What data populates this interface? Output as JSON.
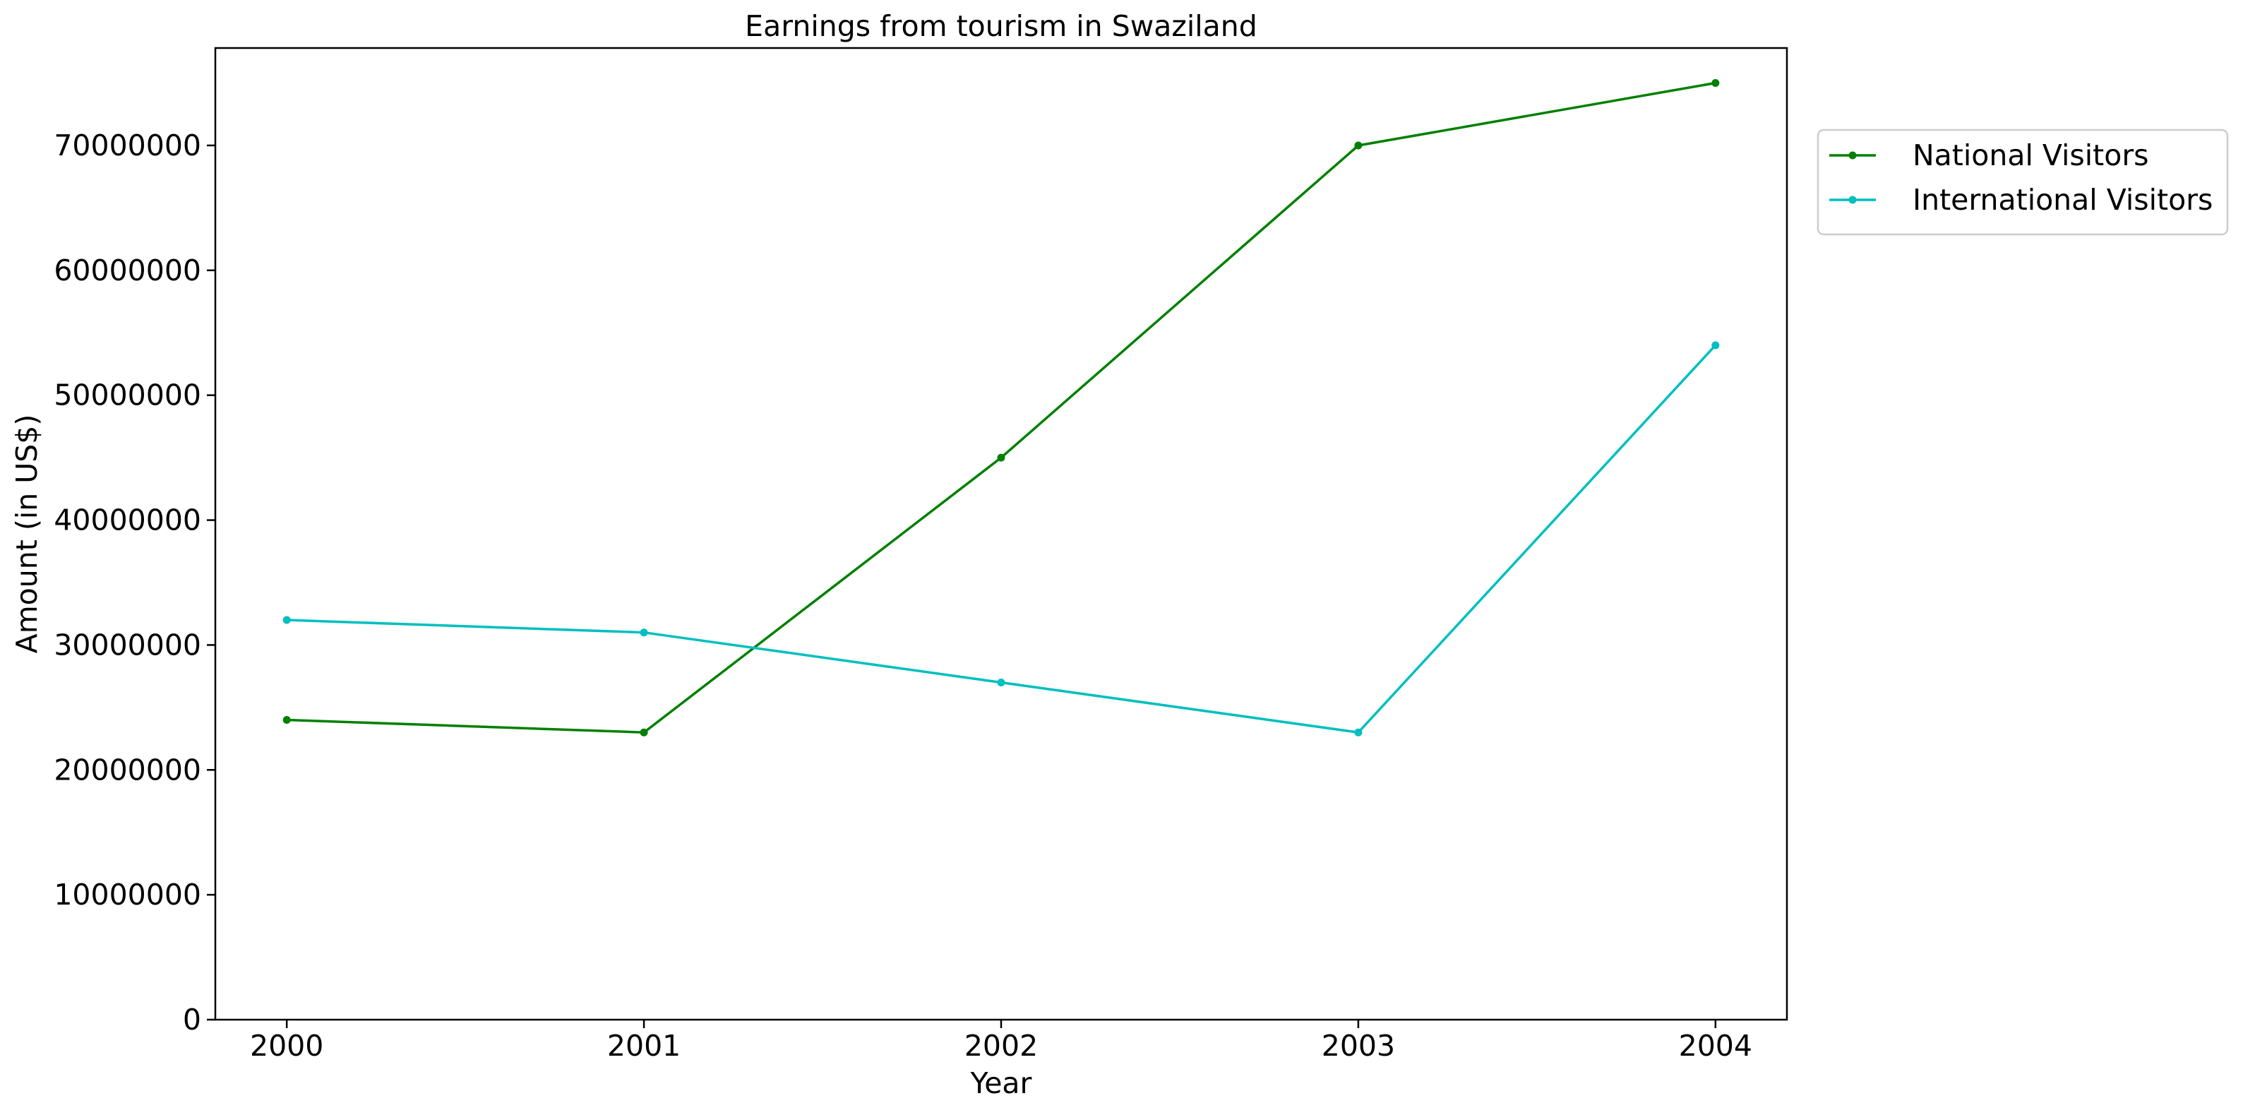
{
  "chart_data": {
    "type": "line",
    "title": "Earnings from tourism in Swaziland",
    "xlabel": "Year",
    "ylabel": "Amount (in US$)",
    "x": [
      "2000",
      "2001",
      "2002",
      "2003",
      "2004"
    ],
    "xlim": [
      -0.2,
      4.2
    ],
    "ylim": [
      0,
      77800000
    ],
    "yticks": [
      0,
      10000000,
      20000000,
      30000000,
      40000000,
      50000000,
      60000000,
      70000000
    ],
    "ytick_labels": [
      "0",
      "10000000",
      "20000000",
      "30000000",
      "40000000",
      "50000000",
      "60000000",
      "70000000"
    ],
    "grid": false,
    "legend_position": "outside-top-right",
    "series": [
      {
        "name": "National Visitors",
        "color": "#008000",
        "marker": "dot",
        "values": [
          24000000,
          23000000,
          45000000,
          70000000,
          75000000
        ]
      },
      {
        "name": "International Visitors",
        "color": "#00bfbf",
        "marker": "dot",
        "values": [
          32000000,
          31000000,
          27000000,
          23000000,
          54000000
        ]
      }
    ]
  }
}
